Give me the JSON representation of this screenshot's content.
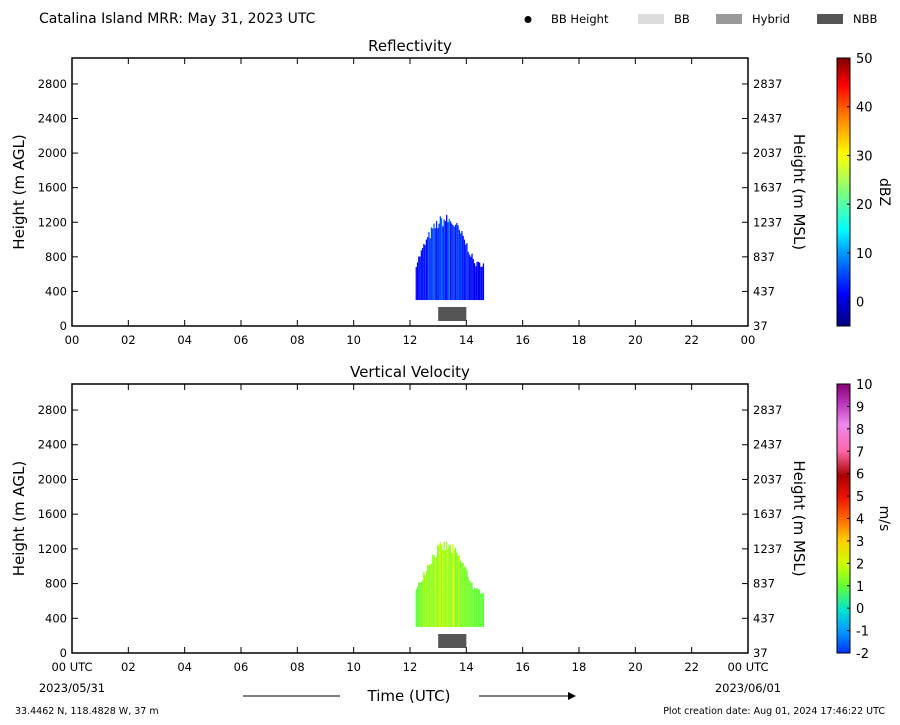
{
  "header": {
    "title": "Catalina Island MRR:  May 31, 2023 UTC",
    "legend": [
      {
        "label": "BB Height",
        "marker": "dot",
        "color": "#000000"
      },
      {
        "label": "BB",
        "marker": "box",
        "color": "#dcdcdc"
      },
      {
        "label": "Hybrid",
        "marker": "box",
        "color": "#999999"
      },
      {
        "label": "NBB",
        "marker": "box",
        "color": "#555555"
      }
    ]
  },
  "chart_data": [
    {
      "type": "heatmap",
      "title": "Reflectivity",
      "ylabel": "Height (m AGL)",
      "ylabel_right": "Height (m MSL)",
      "x_ticks": [
        "00",
        "02",
        "04",
        "06",
        "08",
        "10",
        "12",
        "14",
        "16",
        "18",
        "20",
        "22",
        "00"
      ],
      "xlim": [
        0,
        24
      ],
      "ylim": [
        0,
        3100
      ],
      "y_ticks": [
        0,
        400,
        800,
        1200,
        1600,
        2000,
        2400,
        2800
      ],
      "y_ticks_right": [
        37,
        437,
        837,
        1237,
        1637,
        2037,
        2437,
        2837
      ],
      "colorbar": {
        "label": "dBZ",
        "min": -5,
        "max": 50,
        "ticks": [
          0,
          10,
          20,
          30,
          40,
          50
        ]
      },
      "echo": {
        "time_range": [
          12.2,
          14.6
        ],
        "height_range": [
          300,
          1300
        ],
        "value_range": [
          -3,
          9
        ]
      },
      "nbb_bar": {
        "time_range": [
          13.0,
          14.0
        ]
      }
    },
    {
      "type": "heatmap",
      "title": "Vertical Velocity",
      "ylabel": "Height (m AGL)",
      "ylabel_right": "Height (m MSL)",
      "x_ticks": [
        "00 UTC",
        "02",
        "04",
        "06",
        "08",
        "10",
        "12",
        "14",
        "16",
        "18",
        "20",
        "22",
        "00 UTC"
      ],
      "xlim": [
        0,
        24
      ],
      "ylim": [
        0,
        3100
      ],
      "y_ticks": [
        0,
        400,
        800,
        1200,
        1600,
        2000,
        2400,
        2800
      ],
      "y_ticks_right": [
        37,
        437,
        837,
        1237,
        1637,
        2037,
        2437,
        2837
      ],
      "colorbar": {
        "label": "m/s",
        "min": -2,
        "max": 10,
        "ticks": [
          -2,
          -1,
          0,
          1,
          2,
          3,
          4,
          5,
          6,
          7,
          8,
          9,
          10
        ]
      },
      "echo": {
        "time_range": [
          12.2,
          14.6
        ],
        "height_range": [
          300,
          1300
        ],
        "value_range": [
          0.3,
          2.2
        ]
      },
      "nbb_bar": {
        "time_range": [
          13.0,
          14.0
        ]
      }
    }
  ],
  "footer": {
    "start_date": "2023/05/31",
    "end_date": "2023/06/01",
    "xlabel": "Time (UTC)",
    "location": "33.4462 N, 118.4828 W, 37 m",
    "creation": "Plot creation date: Aug 01, 2024 17:46:22 UTC"
  }
}
